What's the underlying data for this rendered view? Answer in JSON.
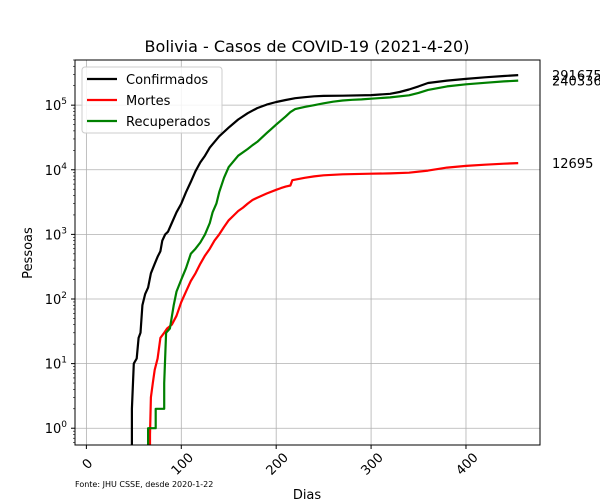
{
  "chart_data": {
    "type": "line",
    "title": "Bolivia - Casos de COVID-19 (2021-4-20)",
    "xlabel": "Dias",
    "ylabel": "Pessoas",
    "yscale": "log",
    "xlim": [
      -12,
      478
    ],
    "ylim": [
      0.55,
      500000
    ],
    "grid": true,
    "legend_position": "top-left",
    "source": "Fonte: JHU CSSE, desde 2020-1-22",
    "x_ticks": [
      0,
      100,
      200,
      300,
      400
    ],
    "y_ticks": [
      {
        "value": 1,
        "base": "10",
        "exp": "0"
      },
      {
        "value": 10,
        "base": "10",
        "exp": "1"
      },
      {
        "value": 100,
        "base": "10",
        "exp": "2"
      },
      {
        "value": 1000,
        "base": "10",
        "exp": "3"
      },
      {
        "value": 10000,
        "base": "10",
        "exp": "4"
      },
      {
        "value": 100000,
        "base": "10",
        "exp": "5"
      }
    ],
    "series": [
      {
        "name": "Confirmados",
        "color": "#000000",
        "end_label": "291675",
        "points": [
          [
            48,
            0.4
          ],
          [
            48,
            2
          ],
          [
            50,
            10
          ],
          [
            53,
            12
          ],
          [
            55,
            25
          ],
          [
            57,
            30
          ],
          [
            59,
            80
          ],
          [
            62,
            120
          ],
          [
            65,
            150
          ],
          [
            68,
            250
          ],
          [
            72,
            350
          ],
          [
            75,
            450
          ],
          [
            78,
            550
          ],
          [
            80,
            800
          ],
          [
            83,
            1000
          ],
          [
            86,
            1100
          ],
          [
            90,
            1500
          ],
          [
            95,
            2200
          ],
          [
            100,
            3000
          ],
          [
            105,
            4500
          ],
          [
            110,
            6500
          ],
          [
            115,
            9500
          ],
          [
            120,
            13000
          ],
          [
            125,
            16500
          ],
          [
            130,
            22000
          ],
          [
            140,
            33000
          ],
          [
            150,
            45000
          ],
          [
            160,
            60000
          ],
          [
            170,
            75000
          ],
          [
            180,
            90000
          ],
          [
            190,
            102000
          ],
          [
            200,
            112000
          ],
          [
            210,
            120000
          ],
          [
            220,
            128000
          ],
          [
            230,
            133000
          ],
          [
            240,
            137000
          ],
          [
            250,
            139000
          ],
          [
            270,
            140000
          ],
          [
            300,
            143000
          ],
          [
            320,
            150000
          ],
          [
            330,
            160000
          ],
          [
            340,
            175000
          ],
          [
            350,
            195000
          ],
          [
            360,
            220000
          ],
          [
            380,
            240000
          ],
          [
            400,
            255000
          ],
          [
            420,
            270000
          ],
          [
            440,
            283000
          ],
          [
            455,
            291675
          ]
        ]
      },
      {
        "name": "Mortes",
        "color": "#ff0000",
        "end_label": "12695",
        "points": [
          [
            67,
            0.4
          ],
          [
            67,
            0.8
          ],
          [
            68,
            3
          ],
          [
            70,
            5
          ],
          [
            72,
            8
          ],
          [
            75,
            12
          ],
          [
            78,
            25
          ],
          [
            82,
            30
          ],
          [
            85,
            35
          ],
          [
            90,
            40
          ],
          [
            95,
            55
          ],
          [
            100,
            90
          ],
          [
            105,
            130
          ],
          [
            110,
            190
          ],
          [
            115,
            250
          ],
          [
            120,
            350
          ],
          [
            125,
            470
          ],
          [
            130,
            600
          ],
          [
            135,
            800
          ],
          [
            140,
            1000
          ],
          [
            145,
            1300
          ],
          [
            150,
            1650
          ],
          [
            155,
            1950
          ],
          [
            160,
            2300
          ],
          [
            165,
            2600
          ],
          [
            170,
            3000
          ],
          [
            175,
            3400
          ],
          [
            180,
            3700
          ],
          [
            190,
            4300
          ],
          [
            200,
            4900
          ],
          [
            205,
            5200
          ],
          [
            210,
            5500
          ],
          [
            215,
            5700
          ],
          [
            217,
            6900
          ],
          [
            230,
            7500
          ],
          [
            240,
            7900
          ],
          [
            250,
            8200
          ],
          [
            270,
            8500
          ],
          [
            300,
            8700
          ],
          [
            320,
            8800
          ],
          [
            340,
            9000
          ],
          [
            360,
            9700
          ],
          [
            380,
            10800
          ],
          [
            400,
            11500
          ],
          [
            420,
            12000
          ],
          [
            440,
            12400
          ],
          [
            455,
            12695
          ]
        ]
      },
      {
        "name": "Recuperados",
        "color": "#008000",
        "end_label": "240336",
        "points": [
          [
            65,
            0.4
          ],
          [
            65,
            1
          ],
          [
            73,
            1
          ],
          [
            73,
            2
          ],
          [
            82,
            2
          ],
          [
            82,
            5
          ],
          [
            84,
            30
          ],
          [
            88,
            35
          ],
          [
            92,
            80
          ],
          [
            95,
            130
          ],
          [
            100,
            200
          ],
          [
            105,
            300
          ],
          [
            110,
            500
          ],
          [
            115,
            600
          ],
          [
            120,
            750
          ],
          [
            125,
            1000
          ],
          [
            130,
            1500
          ],
          [
            133,
            2200
          ],
          [
            137,
            3000
          ],
          [
            140,
            4500
          ],
          [
            145,
            7500
          ],
          [
            150,
            11000
          ],
          [
            160,
            16500
          ],
          [
            170,
            21000
          ],
          [
            175,
            24000
          ],
          [
            180,
            27000
          ],
          [
            190,
            37000
          ],
          [
            200,
            50000
          ],
          [
            210,
            67000
          ],
          [
            215,
            78000
          ],
          [
            220,
            87000
          ],
          [
            230,
            94000
          ],
          [
            240,
            100000
          ],
          [
            250,
            107000
          ],
          [
            260,
            113000
          ],
          [
            270,
            118000
          ],
          [
            280,
            121000
          ],
          [
            290,
            123000
          ],
          [
            300,
            126000
          ],
          [
            320,
            132000
          ],
          [
            340,
            142000
          ],
          [
            350,
            155000
          ],
          [
            360,
            172000
          ],
          [
            380,
            195000
          ],
          [
            400,
            210000
          ],
          [
            420,
            222000
          ],
          [
            440,
            233000
          ],
          [
            455,
            240336
          ]
        ]
      }
    ]
  }
}
